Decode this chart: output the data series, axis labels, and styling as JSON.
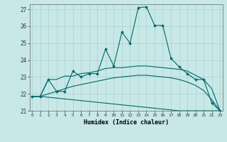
{
  "bg_color": "#c8e8e8",
  "grid_color": "#aed4d4",
  "line_color": "#006868",
  "xlabel": "Humidex (Indice chaleur)",
  "ylim": [
    21,
    27.3
  ],
  "xlim": [
    -0.3,
    23.3
  ],
  "yticks": [
    21,
    22,
    23,
    24,
    25,
    26,
    27
  ],
  "xticks": [
    0,
    1,
    2,
    3,
    4,
    5,
    6,
    7,
    8,
    9,
    10,
    11,
    12,
    13,
    14,
    15,
    16,
    17,
    18,
    19,
    20,
    21,
    22,
    23
  ],
  "line1_x": [
    0,
    1,
    2,
    3,
    4,
    5,
    6,
    7,
    8,
    9,
    10,
    11,
    12,
    13,
    14,
    15,
    16,
    17,
    18,
    19,
    20,
    21,
    22,
    23
  ],
  "line1_y": [
    21.85,
    21.85,
    22.85,
    22.15,
    22.15,
    23.35,
    23.0,
    23.2,
    23.2,
    24.65,
    23.65,
    25.65,
    25.0,
    27.1,
    27.15,
    26.05,
    26.05,
    24.1,
    23.6,
    23.2,
    22.85,
    22.85,
    21.45,
    21.0
  ],
  "line2_x": [
    0,
    1,
    2,
    3,
    4,
    5,
    6,
    7,
    8,
    9,
    10,
    11,
    12,
    13,
    14,
    15,
    16,
    17,
    18,
    19,
    20,
    21,
    22,
    23
  ],
  "line2_y": [
    21.85,
    21.85,
    22.85,
    22.85,
    23.05,
    23.05,
    23.2,
    23.25,
    23.35,
    23.5,
    23.55,
    23.55,
    23.6,
    23.65,
    23.65,
    23.6,
    23.55,
    23.5,
    23.45,
    23.35,
    23.1,
    22.85,
    22.3,
    21.0
  ],
  "line3_x": [
    0,
    1,
    2,
    3,
    4,
    5,
    6,
    7,
    8,
    9,
    10,
    11,
    12,
    13,
    14,
    15,
    16,
    17,
    18,
    19,
    20,
    21,
    22,
    23
  ],
  "line3_y": [
    21.85,
    21.85,
    22.0,
    22.15,
    22.3,
    22.45,
    22.55,
    22.65,
    22.75,
    22.85,
    22.95,
    23.0,
    23.05,
    23.1,
    23.1,
    23.05,
    23.0,
    22.95,
    22.85,
    22.7,
    22.5,
    22.2,
    21.65,
    21.0
  ],
  "line4_x": [
    0,
    1,
    2,
    3,
    4,
    5,
    6,
    7,
    8,
    9,
    10,
    11,
    12,
    13,
    14,
    15,
    16,
    17,
    18,
    19,
    20,
    21,
    22,
    23
  ],
  "line4_y": [
    21.85,
    21.85,
    21.8,
    21.75,
    21.7,
    21.65,
    21.6,
    21.55,
    21.5,
    21.45,
    21.4,
    21.35,
    21.3,
    21.25,
    21.2,
    21.15,
    21.1,
    21.05,
    21.0,
    21.0,
    21.0,
    21.0,
    21.0,
    21.0
  ]
}
